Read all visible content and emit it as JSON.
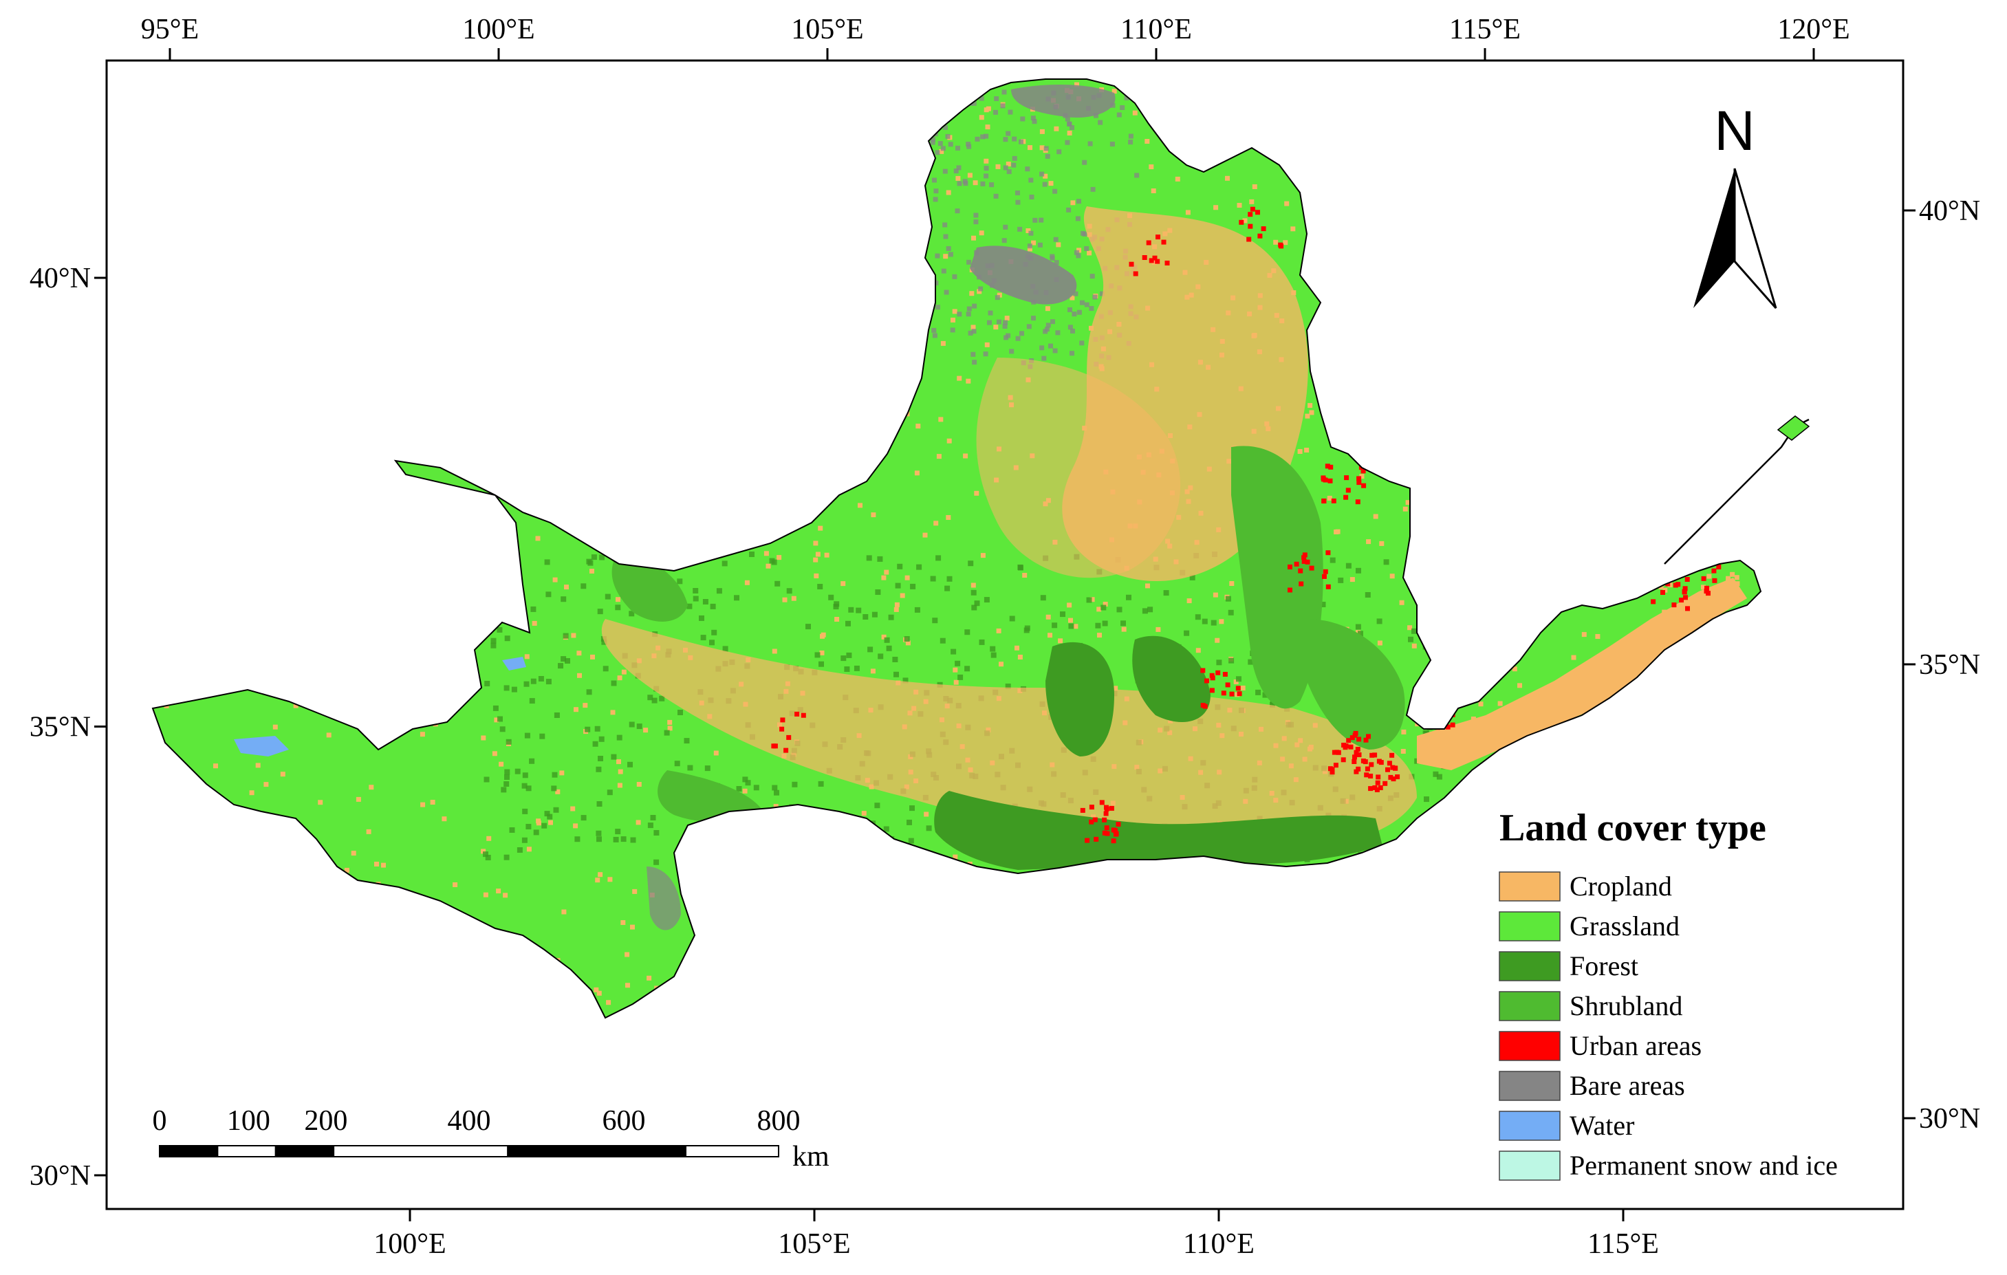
{
  "map": {
    "top_ticks": [
      {
        "label": "95°E",
        "lon": 95
      },
      {
        "label": "100°E",
        "lon": 100
      },
      {
        "label": "105°E",
        "lon": 105
      },
      {
        "label": "110°E",
        "lon": 110
      },
      {
        "label": "115°E",
        "lon": 115
      },
      {
        "label": "120°E",
        "lon": 120
      }
    ],
    "bottom_ticks": [
      {
        "label": "100°E",
        "lon": 100
      },
      {
        "label": "105°E",
        "lon": 105
      },
      {
        "label": "110°E",
        "lon": 110
      },
      {
        "label": "115°E",
        "lon": 115
      }
    ],
    "left_ticks": [
      {
        "label": "40°N",
        "lat": 40
      },
      {
        "label": "35°N",
        "lat": 35
      },
      {
        "label": "30°N",
        "lat": 30
      }
    ],
    "right_ticks": [
      {
        "label": "40°N",
        "lat": 40
      },
      {
        "label": "35°N",
        "lat": 35
      },
      {
        "label": "30°N",
        "lat": 30
      }
    ],
    "north_arrow_label": "N"
  },
  "legend": {
    "title": "Land cover type",
    "items": [
      {
        "label": "Cropland",
        "color": "#f7b764"
      },
      {
        "label": "Grassland",
        "color": "#5de83a"
      },
      {
        "label": "Forest",
        "color": "#3e9b22"
      },
      {
        "label": "Shrubland",
        "color": "#4fbb30"
      },
      {
        "label": "Urban areas",
        "color": "#ff0000"
      },
      {
        "label": "Bare areas",
        "color": "#858585"
      },
      {
        "label": "Water",
        "color": "#74adf5"
      },
      {
        "label": "Permanent snow and ice",
        "color": "#bdf7e4"
      }
    ]
  },
  "scale_bar": {
    "labels": [
      "0",
      "100",
      "200",
      "400",
      "600",
      "800"
    ],
    "unit": "km"
  },
  "colors": {
    "cropland": "#f7b764",
    "grassland": "#5de83a",
    "forest": "#3e9b22",
    "shrubland": "#4fbb30",
    "urban": "#ff0000",
    "bare": "#858585",
    "water": "#74adf5"
  }
}
